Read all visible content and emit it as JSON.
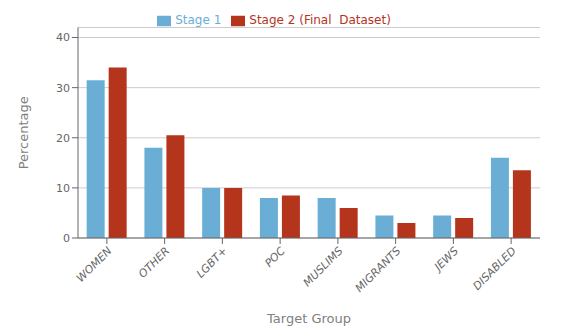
{
  "chart_data": {
    "type": "bar",
    "xlabel": "Target Group",
    "ylabel": "Percentage",
    "categories": [
      "WOMEN",
      "OTHER",
      "LGBT+",
      "POC",
      "MUSLIMS",
      "MIGRANTS",
      "JEWS",
      "DISABLED"
    ],
    "series": [
      {
        "name": "Stage 1",
        "color": "#6aaed6",
        "values": [
          31.5,
          18.0,
          10.0,
          8.0,
          8.0,
          4.5,
          4.5,
          16.0
        ]
      },
      {
        "name": "Stage 2 (Final  Dataset)",
        "color": "#b5341c",
        "values": [
          34.0,
          20.5,
          10.0,
          8.5,
          6.0,
          3.0,
          4.0,
          13.5
        ]
      }
    ],
    "ylim": [
      0,
      42
    ],
    "yticks": [
      0,
      10,
      20,
      30,
      40
    ],
    "grid": true,
    "legend": "top"
  }
}
